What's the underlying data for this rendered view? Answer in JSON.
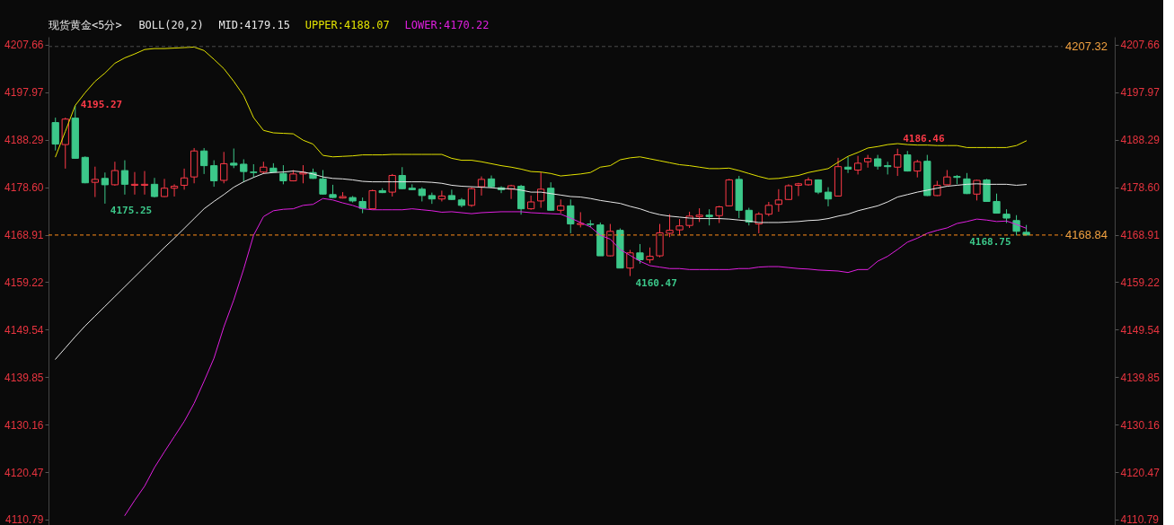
{
  "chart_data": {
    "type": "candlestick",
    "title": "现货黄金<5分>",
    "legend_title": "BOLL(20,2)",
    "legend": "top left",
    "categories": [
      null,
      null,
      null,
      null,
      null,
      null,
      null,
      null,
      null,
      null,
      null,
      null,
      null,
      null,
      null,
      null,
      null,
      null,
      null,
      null,
      null,
      null,
      null,
      null,
      null,
      null,
      null,
      null,
      null,
      null,
      null,
      null,
      null,
      null,
      null,
      null,
      null,
      null,
      null,
      null,
      null,
      null,
      null,
      null,
      null,
      null,
      null,
      null,
      null,
      null,
      null,
      null,
      null,
      null,
      null,
      null,
      null,
      null,
      null,
      null,
      null,
      null,
      null,
      null,
      null,
      null,
      null,
      null,
      null,
      null,
      null,
      null,
      null,
      null,
      null,
      null,
      null,
      null,
      null,
      null,
      null,
      null,
      null,
      null,
      null,
      null,
      null,
      null,
      null,
      null,
      null,
      null,
      null,
      null,
      null,
      null,
      null,
      null,
      null
    ],
    "ohlc": [
      [
        4191.8,
        4192.8,
        4186.1,
        4187.4
      ],
      [
        4187.3,
        4192.8,
        4182.4,
        4192.5
      ],
      [
        4192.7,
        4195.27,
        4184.4,
        4184.5
      ],
      [
        4184.7,
        4184.9,
        4179.4,
        4179.5
      ],
      [
        4179.6,
        4182.8,
        4176.6,
        4180.2
      ],
      [
        4180.4,
        4181.6,
        4175.25,
        4179.1
      ],
      [
        4179.1,
        4183.8,
        4178.9,
        4182.0
      ],
      [
        4182.0,
        4184.1,
        4177.1,
        4179.2
      ],
      [
        4179.0,
        4181.7,
        4177.1,
        4179.2
      ],
      [
        4179.0,
        4181.9,
        4177.1,
        4179.2
      ],
      [
        4179.2,
        4180.5,
        4176.5,
        4176.7
      ],
      [
        4176.7,
        4180.3,
        4176.6,
        4178.4
      ],
      [
        4178.4,
        4179.2,
        4176.7,
        4178.8
      ],
      [
        4179.0,
        4182.4,
        4178.1,
        4180.5
      ],
      [
        4180.7,
        4186.6,
        4179.4,
        4186.0
      ],
      [
        4186.0,
        4186.6,
        4181.3,
        4183.0
      ],
      [
        4183.0,
        4184.1,
        4178.7,
        4179.9
      ],
      [
        4180.0,
        4185.8,
        4179.4,
        4183.4
      ],
      [
        4183.5,
        4186.5,
        4182.5,
        4183.1
      ],
      [
        4183.3,
        4184.3,
        4179.6,
        4181.8
      ],
      [
        4181.7,
        4183.3,
        4180.6,
        4181.6
      ],
      [
        4181.7,
        4183.8,
        4181.3,
        4182.7
      ],
      [
        4182.5,
        4183.5,
        4181.5,
        4181.7
      ],
      [
        4181.4,
        4183.1,
        4179.2,
        4179.9
      ],
      [
        4179.9,
        4182.1,
        4179.8,
        4181.3
      ],
      [
        4181.3,
        4183.1,
        4179.4,
        4181.6
      ],
      [
        4181.6,
        4182.4,
        4180.3,
        4180.4
      ],
      [
        4180.3,
        4182.1,
        4177.1,
        4177.2
      ],
      [
        4177.1,
        4179.1,
        4176.4,
        4176.5
      ],
      [
        4176.4,
        4177.6,
        4176.3,
        4176.7
      ],
      [
        4176.5,
        4176.8,
        4175.5,
        4175.8
      ],
      [
        4175.7,
        4176.5,
        4173.3,
        4174.3
      ],
      [
        4174.2,
        4178.1,
        4174.1,
        4177.9
      ],
      [
        4177.9,
        4178.4,
        4177.4,
        4177.5
      ],
      [
        4177.6,
        4181.3,
        4176.7,
        4181.0
      ],
      [
        4181.0,
        4182.7,
        4178.2,
        4178.3
      ],
      [
        4178.4,
        4179.2,
        4178.0,
        4178.1
      ],
      [
        4178.2,
        4178.6,
        4175.7,
        4176.9
      ],
      [
        4176.9,
        4177.5,
        4175.2,
        4176.2
      ],
      [
        4176.2,
        4177.9,
        4175.7,
        4176.8
      ],
      [
        4176.9,
        4178.1,
        4176.0,
        4176.1
      ],
      [
        4176.0,
        4176.4,
        4174.5,
        4174.9
      ],
      [
        4174.9,
        4178.6,
        4174.6,
        4178.3
      ],
      [
        4178.7,
        4180.8,
        4176.9,
        4180.2
      ],
      [
        4180.3,
        4181.0,
        4178.5,
        4178.7
      ],
      [
        4178.5,
        4178.8,
        4177.4,
        4178.1
      ],
      [
        4178.2,
        4179.1,
        4176.2,
        4178.9
      ],
      [
        4178.8,
        4179.1,
        4173.0,
        4174.2
      ],
      [
        4174.2,
        4176.9,
        4174.0,
        4175.6
      ],
      [
        4175.8,
        4181.7,
        4174.4,
        4178.2
      ],
      [
        4178.4,
        4179.6,
        4173.8,
        4173.9
      ],
      [
        4173.9,
        4176.1,
        4173.3,
        4174.8
      ],
      [
        4174.8,
        4176.1,
        4169.2,
        4171.1
      ],
      [
        4171.0,
        4173.5,
        4170.4,
        4171.2
      ],
      [
        4171.1,
        4171.9,
        4170.4,
        4171.0
      ],
      [
        4170.9,
        4171.4,
        4164.6,
        4164.6
      ],
      [
        4164.6,
        4171.1,
        4164.5,
        4169.6
      ],
      [
        4169.8,
        4170.2,
        4162.1,
        4162.1
      ],
      [
        4162.1,
        4165.8,
        4160.47,
        4165.2
      ],
      [
        4165.2,
        4167.0,
        4163.0,
        4163.8
      ],
      [
        4163.8,
        4166.3,
        4163.1,
        4164.5
      ],
      [
        4164.6,
        4171.1,
        4164.3,
        4169.3
      ],
      [
        4169.2,
        4173.1,
        4168.4,
        4169.8
      ],
      [
        4169.9,
        4172.1,
        4168.8,
        4170.7
      ],
      [
        4170.8,
        4173.6,
        4170.3,
        4172.7
      ],
      [
        4172.6,
        4174.3,
        4171.5,
        4172.9
      ],
      [
        4172.9,
        4174.1,
        4170.8,
        4172.6
      ],
      [
        4172.8,
        4174.8,
        4171.3,
        4174.6
      ],
      [
        4174.8,
        4180.3,
        4174.7,
        4180.1
      ],
      [
        4180.2,
        4180.9,
        4172.3,
        4173.9
      ],
      [
        4173.9,
        4174.4,
        4170.8,
        4171.5
      ],
      [
        4171.1,
        4173.5,
        4169.2,
        4173.1
      ],
      [
        4173.1,
        4175.6,
        4172.7,
        4174.9
      ],
      [
        4175.1,
        4178.2,
        4173.6,
        4176.0
      ],
      [
        4176.1,
        4179.2,
        4176.0,
        4178.9
      ],
      [
        4179.0,
        4179.5,
        4176.8,
        4179.3
      ],
      [
        4179.1,
        4180.6,
        4178.9,
        4180.1
      ],
      [
        4180.1,
        4180.2,
        4177.2,
        4177.6
      ],
      [
        4177.6,
        4178.6,
        4174.7,
        4176.2
      ],
      [
        4176.8,
        4184.6,
        4176.7,
        4182.8
      ],
      [
        4182.7,
        4184.8,
        4181.5,
        4182.3
      ],
      [
        4182.1,
        4185.0,
        4181.2,
        4183.5
      ],
      [
        4183.8,
        4185.2,
        4182.6,
        4184.5
      ],
      [
        4184.4,
        4185.2,
        4182.2,
        4182.9
      ],
      [
        4183.0,
        4183.8,
        4181.2,
        4182.8
      ],
      [
        4182.7,
        4186.46,
        4180.9,
        4185.2
      ],
      [
        4185.2,
        4186.0,
        4181.8,
        4181.9
      ],
      [
        4181.9,
        4184.2,
        4180.6,
        4183.8
      ],
      [
        4183.9,
        4185.2,
        4176.8,
        4176.9
      ],
      [
        4176.9,
        4179.9,
        4176.8,
        4179.0
      ],
      [
        4179.1,
        4182.1,
        4179.0,
        4180.7
      ],
      [
        4180.8,
        4181.1,
        4179.2,
        4180.6
      ],
      [
        4180.3,
        4181.5,
        4177.2,
        4177.3
      ],
      [
        4177.2,
        4180.1,
        4175.9,
        4180.0
      ],
      [
        4180.1,
        4180.3,
        4175.7,
        4175.7
      ],
      [
        4175.7,
        4177.3,
        4173.3,
        4173.3
      ],
      [
        4173.1,
        4174.1,
        4171.3,
        4172.3
      ],
      [
        4171.8,
        4172.9,
        4168.75,
        4169.6
      ],
      [
        4169.4,
        4170.9,
        4168.84,
        4168.84
      ]
    ],
    "series": [
      {
        "type": "line",
        "name": "MID:4179.15",
        "color": "#e8e8e8",
        "values": [
          4143.5,
          4145.8,
          4148.1,
          4150.3,
          4152.3,
          4154.3,
          4156.3,
          4158.3,
          4160.3,
          4162.3,
          4164.3,
          4166.3,
          4168.2,
          4170.2,
          4172.2,
          4174.2,
          4175.7,
          4177.1,
          4178.6,
          4179.7,
          4180.6,
          4181.4,
          4181.6,
          4181.7,
          4181.9,
          4181.7,
          4181.3,
          4180.7,
          4180.4,
          4180.3,
          4180.1,
          4179.8,
          4179.7,
          4179.7,
          4179.7,
          4179.7,
          4179.7,
          4179.7,
          4179.6,
          4179.4,
          4179.0,
          4178.8,
          4178.7,
          4178.6,
          4178.5,
          4178.3,
          4178.3,
          4178.0,
          4177.6,
          4177.6,
          4177.3,
          4177.0,
          4176.7,
          4176.6,
          4176.3,
          4175.9,
          4175.6,
          4175.3,
          4174.7,
          4174.2,
          4173.5,
          4173.0,
          4172.7,
          4172.5,
          4172.3,
          4172.2,
          4172.2,
          4172.2,
          4172.1,
          4171.9,
          4171.7,
          4171.4,
          4171.4,
          4171.4,
          4171.5,
          4171.6,
          4171.8,
          4171.9,
          4172.2,
          4172.7,
          4173.1,
          4173.8,
          4174.3,
          4174.8,
          4175.6,
          4176.6,
          4177.1,
          4177.6,
          4178.0,
          4178.4,
          4178.8,
          4179.0,
          4179.2,
          4179.3,
          4179.2,
          4179.2,
          4179.2,
          4179.0,
          4179.15
        ]
      },
      {
        "type": "line",
        "name": "UPPER:4188.07",
        "color": "#e3e300",
        "values": [
          4184.8,
          4190.0,
          4195.3,
          4197.9,
          4200.2,
          4201.9,
          4203.9,
          4205.0,
          4205.8,
          4206.7,
          4206.9,
          4206.9,
          4207.0,
          4207.1,
          4207.2,
          4206.5,
          4204.7,
          4202.8,
          4200.2,
          4197.3,
          4192.8,
          4190.2,
          4189.7,
          4189.6,
          4189.5,
          4188.2,
          4187.4,
          4185.1,
          4184.8,
          4184.9,
          4185.0,
          4185.2,
          4185.2,
          4185.2,
          4185.3,
          4185.3,
          4185.3,
          4185.3,
          4185.3,
          4185.3,
          4184.5,
          4184.1,
          4184.1,
          4183.8,
          4183.4,
          4183.0,
          4182.7,
          4182.3,
          4181.8,
          4181.7,
          4181.4,
          4180.9,
          4181.1,
          4181.3,
          4181.6,
          4182.7,
          4183.0,
          4184.2,
          4184.6,
          4184.8,
          4184.4,
          4184.0,
          4183.6,
          4183.2,
          4183.0,
          4182.7,
          4182.4,
          4182.4,
          4182.5,
          4182.0,
          4181.4,
          4180.8,
          4180.3,
          4180.4,
          4180.7,
          4181.0,
          4181.6,
          4182.0,
          4182.4,
          4183.7,
          4184.9,
          4185.7,
          4186.6,
          4186.9,
          4187.3,
          4187.5,
          4187.3,
          4187.2,
          4187.2,
          4187.1,
          4187.1,
          4187.1,
          4186.7,
          4186.7,
          4186.7,
          4186.7,
          4186.7,
          4187.1,
          4188.07
        ]
      },
      {
        "type": "line",
        "name": "LOWER:4170.22",
        "color": "#e01fe0",
        "values": [
          null,
          null,
          null,
          null,
          null,
          null,
          null,
          4111.6,
          4114.7,
          4117.6,
          4121.4,
          4124.6,
          4127.7,
          4130.8,
          4134.5,
          4139.0,
          4143.7,
          4150.1,
          4155.6,
          4161.9,
          4168.8,
          4172.6,
          4173.8,
          4174.1,
          4174.2,
          4174.9,
          4175.1,
          4176.3,
          4176.0,
          4175.4,
          4174.9,
          4174.2,
          4174.0,
          4174.0,
          4174.0,
          4174.0,
          4174.2,
          4174.0,
          4173.8,
          4173.5,
          4173.6,
          4173.4,
          4173.2,
          4173.4,
          4173.5,
          4173.6,
          4173.6,
          4173.6,
          4173.4,
          4173.3,
          4173.2,
          4173.1,
          4172.3,
          4171.4,
          4170.5,
          4168.8,
          4168.0,
          4165.9,
          4164.7,
          4163.5,
          4162.6,
          4162.3,
          4162.0,
          4162.0,
          4161.8,
          4161.8,
          4161.8,
          4161.8,
          4161.8,
          4162.0,
          4162.0,
          4162.3,
          4162.4,
          4162.4,
          4162.2,
          4162.0,
          4161.9,
          4161.7,
          4161.6,
          4161.5,
          4161.2,
          4161.8,
          4161.8,
          4163.5,
          4164.5,
          4165.9,
          4167.4,
          4168.2,
          4169.2,
          4169.8,
          4170.3,
          4171.2,
          4171.6,
          4172.1,
          4171.9,
          4171.6,
          4171.7,
          4171.0,
          4170.22
        ]
      }
    ],
    "ylim": [
      4109.3,
      4209.3
    ],
    "yticks": [
      4110.79,
      4120.47,
      4130.16,
      4139.85,
      4149.54,
      4159.22,
      4168.91,
      {
        "value": 4178.6,
        "label": "4178.60"
      },
      4188.29,
      4197.97,
      4207.66
    ],
    "y2lim": [
      4109.3,
      4209.3
    ],
    "y2ticks": [
      4110.79,
      4120.47,
      4130.16,
      4139.85,
      4149.54,
      4159.22,
      4168.91,
      {
        "value": 4178.6,
        "label": "4178.60"
      },
      4188.29,
      4197.97,
      4207.66
    ],
    "ref_lines": [
      {
        "axis": "y2",
        "value": 4168.84,
        "color": "#ff8c1a",
        "line_style": "dashed"
      },
      {
        "axis": "y2",
        "value": 4207.32,
        "color": "#4a4a4a",
        "line_style": "dashed"
      }
    ],
    "annotations": [
      "4195.27",
      "4175.25",
      "4160.47",
      "4186.46",
      "4168.75",
      "4168.84",
      "4207.32"
    ]
  }
}
